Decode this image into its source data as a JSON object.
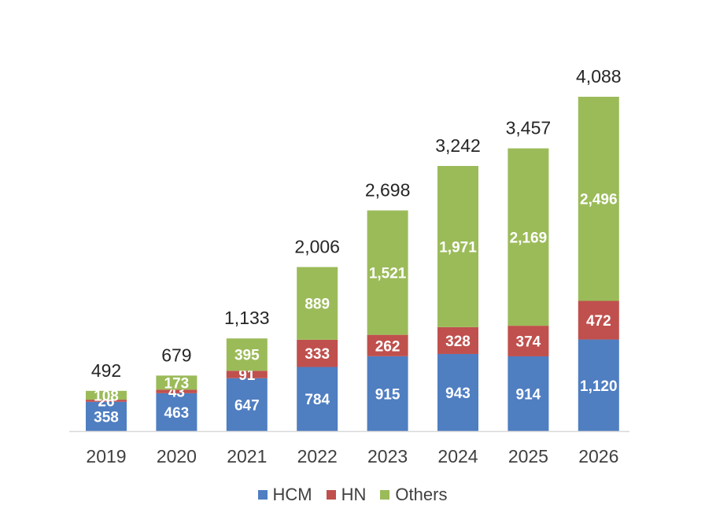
{
  "chart_data": {
    "type": "bar",
    "stacked": true,
    "categories": [
      "2019",
      "2020",
      "2021",
      "2022",
      "2023",
      "2024",
      "2025",
      "2026"
    ],
    "series": [
      {
        "name": "HCM",
        "color": "#4F7EC1",
        "values": [
          358,
          463,
          647,
          784,
          915,
          943,
          914,
          1120
        ],
        "labels": [
          "358",
          "463",
          "647",
          "784",
          "915",
          "943",
          "914",
          "1,120"
        ]
      },
      {
        "name": "HN",
        "color": "#C0504D",
        "values": [
          26,
          43,
          91,
          333,
          262,
          328,
          374,
          472
        ],
        "labels": [
          "26",
          "43",
          "91",
          "333",
          "262",
          "328",
          "374",
          "472"
        ]
      },
      {
        "name": "Others",
        "color": "#9BBB59",
        "values": [
          108,
          173,
          395,
          889,
          1521,
          1971,
          2169,
          2496
        ],
        "labels": [
          "108",
          "173",
          "395",
          "889",
          "1,521",
          "1,971",
          "2,169",
          "2,496"
        ]
      }
    ],
    "totals": [
      492,
      679,
      1133,
      2006,
      2698,
      3242,
      3457,
      4088
    ],
    "total_labels": [
      "492",
      "679",
      "1,133",
      "2,006",
      "2,698",
      "3,242",
      "3,457",
      "4,088"
    ],
    "ylim": [
      0,
      4088
    ],
    "grid": false,
    "legend_position": "bottom"
  },
  "legend": {
    "items": [
      {
        "label": "HCM",
        "color": "#4F7EC1"
      },
      {
        "label": "HN",
        "color": "#C0504D"
      },
      {
        "label": "Others",
        "color": "#9BBB59"
      }
    ]
  }
}
